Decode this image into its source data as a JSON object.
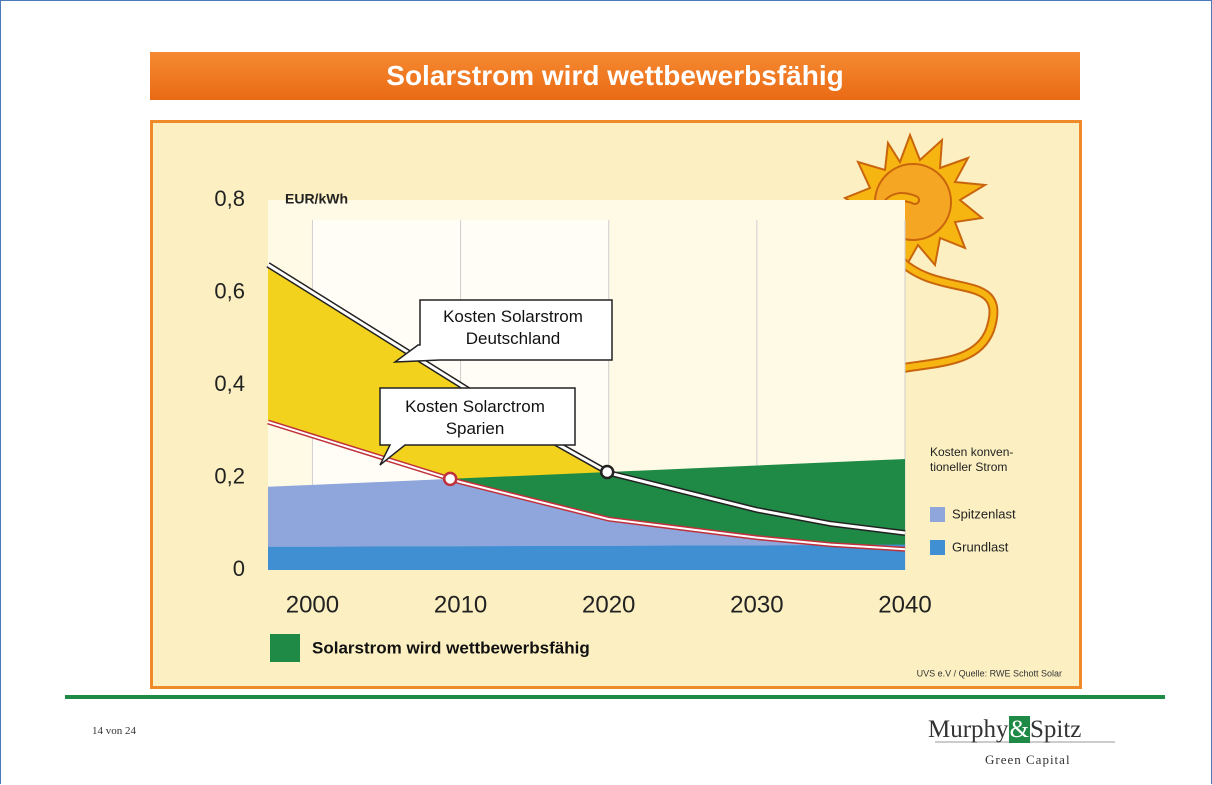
{
  "slide_title": "Solarstrom wird wettbewerbsfähig",
  "chart_data": {
    "type": "area",
    "unit_label": "EUR/kWh",
    "x": [
      1997,
      2000,
      2005,
      2010,
      2015,
      2020,
      2025,
      2030,
      2035,
      2040
    ],
    "xlim": [
      1997,
      2040
    ],
    "xticks": [
      2000,
      2010,
      2020,
      2030,
      2040
    ],
    "ylim": [
      0,
      0.8
    ],
    "yticks": [
      0,
      {
        "value": 0.2,
        "label": "0,2"
      },
      {
        "value": 0.4,
        "label": "0,4"
      },
      {
        "value": 0.6,
        "label": "0,6"
      },
      {
        "value": 0.8,
        "label": "0,8"
      }
    ],
    "grid": true,
    "series": [
      {
        "name": "Kosten Solarstrom Deutschland",
        "color": "#f2d21c",
        "line_color": "#222222",
        "values": [
          0.66,
          0.6,
          0.5,
          0.4,
          0.3,
          0.21,
          0.17,
          0.13,
          0.1,
          0.08
        ]
      },
      {
        "name": "Kosten Solarctrom Sparien",
        "color": "#c0303a",
        "values": [
          0.32,
          0.29,
          0.24,
          0.19,
          0.15,
          0.11,
          0.09,
          0.07,
          0.055,
          0.045
        ]
      },
      {
        "name": "Spitzenlast",
        "color": "#8fa6dc",
        "values": [
          0.18,
          0.184,
          0.191,
          0.198,
          0.205,
          0.212,
          0.219,
          0.226,
          0.233,
          0.24
        ]
      },
      {
        "name": "Grundlast",
        "color": "#3f8fd2",
        "values": [
          0.05,
          0.05,
          0.051,
          0.051,
          0.052,
          0.052,
          0.053,
          0.053,
          0.054,
          0.055
        ]
      }
    ],
    "legend_title": [
      "Kosten konven-",
      "tioneller Strom"
    ],
    "competitive_label": "Solarstrom wird wettbewerbsfähig",
    "competitive_color": "#1f8a45",
    "source": "UVS e.V / Quelle: RWE Schott Solar"
  },
  "footer": {
    "page": "14 von 24",
    "logo_left": "Murphy",
    "logo_amp": "&",
    "logo_right": "Spitz",
    "logo_tagline": "Green Capital"
  }
}
